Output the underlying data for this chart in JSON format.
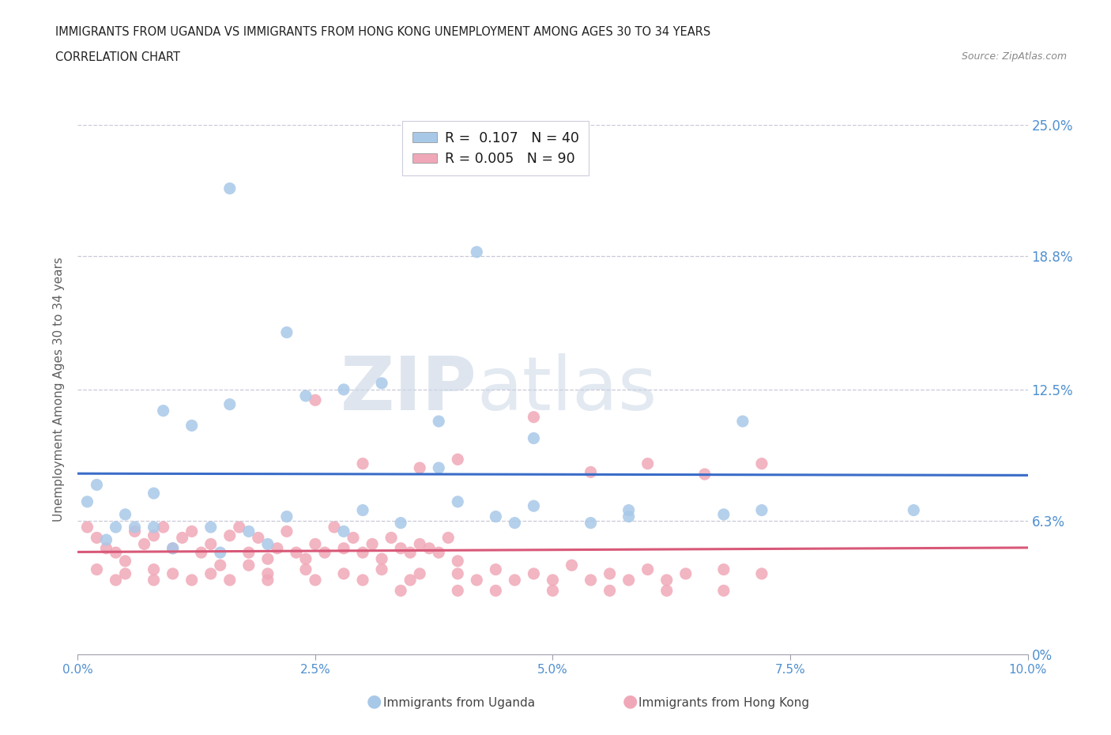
{
  "title_line1": "IMMIGRANTS FROM UGANDA VS IMMIGRANTS FROM HONG KONG UNEMPLOYMENT AMONG AGES 30 TO 34 YEARS",
  "title_line2": "CORRELATION CHART",
  "source_text": "Source: ZipAtlas.com",
  "ylabel": "Unemployment Among Ages 30 to 34 years",
  "xlim": [
    0.0,
    0.1
  ],
  "ylim": [
    0.0,
    0.25
  ],
  "yticks": [
    0.0,
    0.063,
    0.125,
    0.188,
    0.25
  ],
  "ytick_labels": [
    "0%",
    "6.3%",
    "12.5%",
    "18.8%",
    "25.0%"
  ],
  "xticks": [
    0.0,
    0.025,
    0.05,
    0.075,
    0.1
  ],
  "xtick_labels": [
    "0.0%",
    "2.5%",
    "5.0%",
    "7.5%",
    "10.0%"
  ],
  "watermark_zip": "ZIP",
  "watermark_atlas": "atlas",
  "uganda_color": "#a8c8e8",
  "hk_color": "#f0a8b8",
  "uganda_line_color": "#3a6cc8",
  "hk_line_color": "#d85878",
  "background_color": "#ffffff",
  "grid_color": "#c8c8d8",
  "axis_color": "#a0a0b0",
  "right_label_color": "#5090d0",
  "tick_label_color": "#5090d0",
  "ylabel_color": "#606060",
  "legend_uganda_color": "#a8c8e8",
  "legend_hk_color": "#f0a8b8",
  "legend_R_uganda": "0.107",
  "legend_N_uganda": "40",
  "legend_R_hk": "0.005",
  "legend_N_hk": "90",
  "uganda_x": [
    0.012,
    0.016,
    0.002,
    0.001,
    0.004,
    0.005,
    0.003,
    0.006,
    0.008,
    0.014,
    0.018,
    0.022,
    0.028,
    0.038,
    0.038,
    0.042,
    0.044,
    0.048,
    0.058,
    0.009,
    0.016,
    0.024,
    0.028,
    0.032,
    0.068,
    0.07,
    0.008,
    0.022,
    0.03,
    0.04,
    0.048,
    0.058,
    0.072,
    0.088,
    0.01,
    0.015,
    0.02,
    0.034,
    0.046,
    0.054
  ],
  "uganda_y": [
    0.108,
    0.22,
    0.08,
    0.072,
    0.06,
    0.066,
    0.054,
    0.06,
    0.076,
    0.06,
    0.058,
    0.152,
    0.125,
    0.11,
    0.088,
    0.19,
    0.065,
    0.07,
    0.065,
    0.115,
    0.118,
    0.122,
    0.058,
    0.128,
    0.066,
    0.11,
    0.06,
    0.065,
    0.068,
    0.072,
    0.102,
    0.068,
    0.068,
    0.068,
    0.05,
    0.048,
    0.052,
    0.062,
    0.062,
    0.062
  ],
  "hk_x": [
    0.001,
    0.002,
    0.003,
    0.004,
    0.005,
    0.006,
    0.007,
    0.008,
    0.009,
    0.01,
    0.011,
    0.012,
    0.013,
    0.014,
    0.015,
    0.016,
    0.017,
    0.018,
    0.019,
    0.02,
    0.021,
    0.022,
    0.023,
    0.024,
    0.025,
    0.026,
    0.027,
    0.028,
    0.029,
    0.03,
    0.031,
    0.032,
    0.033,
    0.034,
    0.035,
    0.036,
    0.037,
    0.038,
    0.039,
    0.04,
    0.002,
    0.005,
    0.008,
    0.01,
    0.014,
    0.018,
    0.02,
    0.024,
    0.028,
    0.032,
    0.036,
    0.04,
    0.044,
    0.048,
    0.052,
    0.056,
    0.06,
    0.064,
    0.068,
    0.072,
    0.004,
    0.008,
    0.012,
    0.016,
    0.02,
    0.025,
    0.03,
    0.035,
    0.042,
    0.046,
    0.05,
    0.054,
    0.058,
    0.062,
    0.025,
    0.03,
    0.036,
    0.04,
    0.048,
    0.054,
    0.06,
    0.066,
    0.072,
    0.034,
    0.04,
    0.044,
    0.05,
    0.056,
    0.062,
    0.068
  ],
  "hk_y": [
    0.06,
    0.055,
    0.05,
    0.048,
    0.044,
    0.058,
    0.052,
    0.056,
    0.06,
    0.05,
    0.055,
    0.058,
    0.048,
    0.052,
    0.042,
    0.056,
    0.06,
    0.048,
    0.055,
    0.045,
    0.05,
    0.058,
    0.048,
    0.045,
    0.052,
    0.048,
    0.06,
    0.05,
    0.055,
    0.048,
    0.052,
    0.045,
    0.055,
    0.05,
    0.048,
    0.052,
    0.05,
    0.048,
    0.055,
    0.044,
    0.04,
    0.038,
    0.04,
    0.038,
    0.038,
    0.042,
    0.038,
    0.04,
    0.038,
    0.04,
    0.038,
    0.038,
    0.04,
    0.038,
    0.042,
    0.038,
    0.04,
    0.038,
    0.04,
    0.038,
    0.035,
    0.035,
    0.035,
    0.035,
    0.035,
    0.035,
    0.035,
    0.035,
    0.035,
    0.035,
    0.035,
    0.035,
    0.035,
    0.035,
    0.12,
    0.09,
    0.088,
    0.092,
    0.112,
    0.086,
    0.09,
    0.085,
    0.09,
    0.03,
    0.03,
    0.03,
    0.03,
    0.03,
    0.03,
    0.03
  ]
}
